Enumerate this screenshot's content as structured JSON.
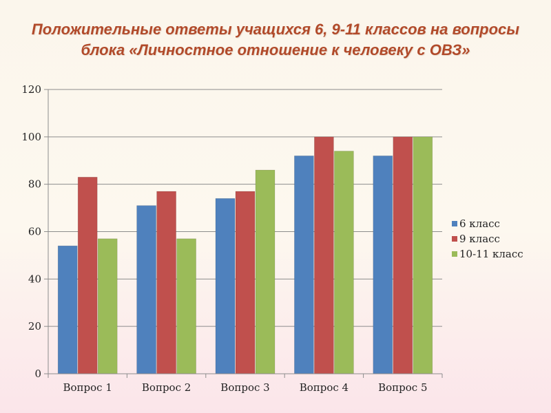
{
  "slide": {
    "title_line1": "Положительные ответы учащихся 6, 9-11 классов на вопросы",
    "title_line2": "блока «Личностное отношение к человеку с ОВЗ»"
  },
  "chart_data": {
    "type": "bar",
    "title": "",
    "xlabel": "",
    "ylabel": "",
    "categories": [
      "Вопрос 1",
      "Вопрос 2",
      "Вопрос 3",
      "Вопрос 4",
      "Вопрос 5"
    ],
    "series": [
      {
        "name": "6 класс",
        "color": "#4f81bd",
        "values": [
          54,
          71,
          74,
          92,
          92
        ]
      },
      {
        "name": "9 класс",
        "color": "#c0504d",
        "values": [
          83,
          77,
          77,
          100,
          100
        ]
      },
      {
        "name": "10-11 класс",
        "color": "#9bbb59",
        "values": [
          57,
          57,
          86,
          94,
          100
        ]
      }
    ],
    "ylim": [
      0,
      120
    ],
    "yticks": [
      "0",
      "20",
      "40",
      "60",
      "80",
      "100",
      "120"
    ],
    "grid": true,
    "legend_position": "right"
  }
}
